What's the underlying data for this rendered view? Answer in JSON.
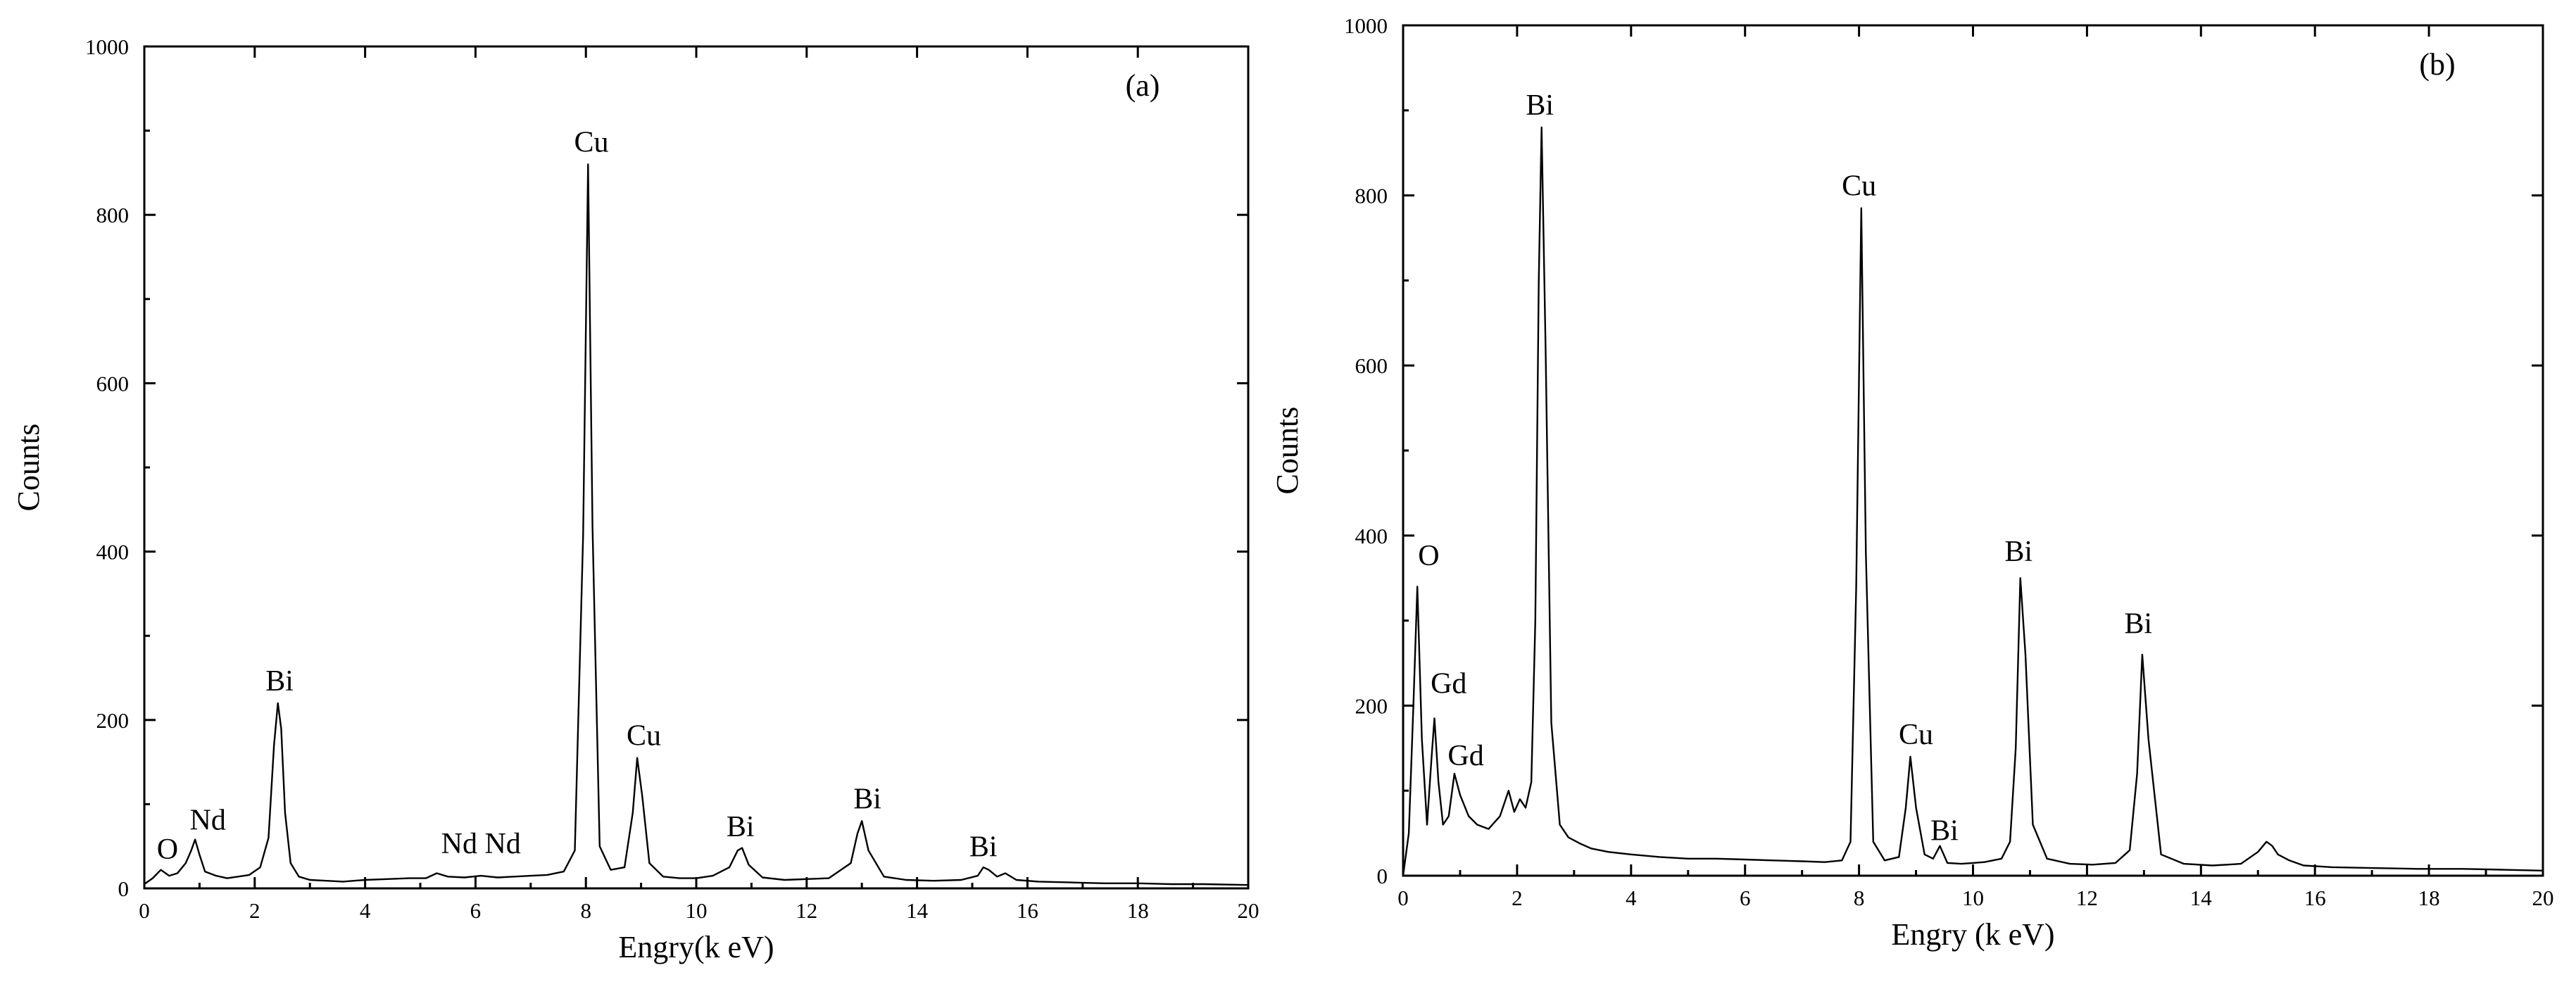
{
  "chart_data": [
    {
      "type": "line",
      "panel_label": "(a)",
      "xlabel": "Engry(k eV)",
      "ylabel": "Counts",
      "xlim": [
        0,
        20
      ],
      "ylim": [
        0,
        1000
      ],
      "x_ticks": [
        "0",
        "2",
        "4",
        "6",
        "8",
        "10",
        "12",
        "14",
        "16",
        "18",
        "20"
      ],
      "y_ticks": [
        "0",
        "200",
        "400",
        "600",
        "800",
        "1000"
      ],
      "series": [
        {
          "x": [
            0.0,
            0.15,
            0.3,
            0.45,
            0.6,
            0.75,
            0.85,
            0.92,
            1.0,
            1.1,
            1.3,
            1.5,
            1.7,
            1.9,
            2.1,
            2.25,
            2.35,
            2.42,
            2.48,
            2.55,
            2.65,
            2.8,
            3.0,
            3.3,
            3.6,
            4.0,
            4.4,
            4.8,
            5.1,
            5.3,
            5.5,
            5.8,
            6.1,
            6.4,
            6.7,
            7.0,
            7.3,
            7.6,
            7.8,
            7.95,
            8.04,
            8.12,
            8.25,
            8.45,
            8.7,
            8.85,
            8.93,
            9.02,
            9.15,
            9.4,
            9.7,
            10.0,
            10.3,
            10.6,
            10.75,
            10.83,
            10.95,
            11.2,
            11.6,
            12.0,
            12.4,
            12.8,
            12.92,
            13.0,
            13.12,
            13.4,
            13.8,
            14.3,
            14.8,
            15.1,
            15.2,
            15.3,
            15.45,
            15.6,
            15.8,
            16.2,
            16.8,
            17.4,
            18.0,
            18.6,
            19.2,
            20.0
          ],
          "y": [
            5,
            12,
            22,
            15,
            18,
            30,
            45,
            58,
            40,
            20,
            15,
            12,
            14,
            16,
            25,
            60,
            170,
            220,
            190,
            90,
            30,
            14,
            10,
            9,
            8,
            10,
            11,
            12,
            12,
            18,
            14,
            13,
            15,
            13,
            14,
            15,
            16,
            20,
            45,
            420,
            860,
            430,
            50,
            22,
            25,
            90,
            155,
            110,
            30,
            14,
            12,
            12,
            15,
            25,
            45,
            48,
            28,
            13,
            10,
            11,
            12,
            30,
            65,
            80,
            45,
            14,
            10,
            9,
            10,
            15,
            25,
            22,
            14,
            18,
            10,
            8,
            7,
            6,
            6,
            5,
            5,
            4
          ]
        }
      ],
      "annotations": [
        {
          "text": "O",
          "x": 0.42,
          "y": 35
        },
        {
          "text": "Nd",
          "x": 1.15,
          "y": 70
        },
        {
          "text": "Bi",
          "x": 2.45,
          "y": 235
        },
        {
          "text": "Nd Nd",
          "x": 6.1,
          "y": 42
        },
        {
          "text": "Cu",
          "x": 8.1,
          "y": 875
        },
        {
          "text": "Cu",
          "x": 9.05,
          "y": 170
        },
        {
          "text": "Bi",
          "x": 10.8,
          "y": 62
        },
        {
          "text": "Bi",
          "x": 13.1,
          "y": 95
        },
        {
          "text": "Bi",
          "x": 15.2,
          "y": 38
        }
      ]
    },
    {
      "type": "line",
      "panel_label": "(b)",
      "xlabel": "Engry (k eV)",
      "ylabel": "Counts",
      "xlim": [
        0,
        20
      ],
      "ylim": [
        0,
        1000
      ],
      "x_ticks": [
        "0",
        "2",
        "4",
        "6",
        "8",
        "10",
        "12",
        "14",
        "16",
        "18",
        "20"
      ],
      "y_ticks": [
        "0",
        "200",
        "400",
        "600",
        "800",
        "1000"
      ],
      "series": [
        {
          "x": [
            0.0,
            0.1,
            0.18,
            0.25,
            0.33,
            0.42,
            0.5,
            0.55,
            0.62,
            0.7,
            0.8,
            0.9,
            1.0,
            1.15,
            1.3,
            1.5,
            1.7,
            1.85,
            1.95,
            2.05,
            2.15,
            2.25,
            2.32,
            2.38,
            2.43,
            2.5,
            2.6,
            2.75,
            2.9,
            3.1,
            3.3,
            3.6,
            4.0,
            4.5,
            5.0,
            5.5,
            6.0,
            6.5,
            7.0,
            7.4,
            7.7,
            7.85,
            7.95,
            8.04,
            8.12,
            8.25,
            8.45,
            8.7,
            8.82,
            8.9,
            9.0,
            9.15,
            9.3,
            9.42,
            9.55,
            9.8,
            10.2,
            10.5,
            10.65,
            10.75,
            10.83,
            10.92,
            11.05,
            11.3,
            11.7,
            12.1,
            12.5,
            12.75,
            12.88,
            12.97,
            13.08,
            13.3,
            13.7,
            14.2,
            14.7,
            15.0,
            15.15,
            15.25,
            15.35,
            15.55,
            15.8,
            16.3,
            17.0,
            17.8,
            18.6,
            19.3,
            20.0
          ],
          "y": [
            0,
            50,
            200,
            340,
            160,
            60,
            140,
            185,
            110,
            60,
            70,
            120,
            95,
            70,
            60,
            55,
            70,
            100,
            75,
            90,
            80,
            110,
            300,
            700,
            880,
            620,
            180,
            60,
            45,
            38,
            32,
            28,
            25,
            22,
            20,
            20,
            19,
            18,
            17,
            16,
            18,
            40,
            340,
            785,
            380,
            40,
            18,
            22,
            80,
            140,
            80,
            25,
            20,
            35,
            15,
            14,
            16,
            20,
            40,
            150,
            350,
            260,
            60,
            20,
            14,
            13,
            15,
            30,
            120,
            260,
            160,
            25,
            14,
            12,
            14,
            28,
            40,
            35,
            25,
            18,
            12,
            10,
            9,
            8,
            8,
            7,
            6
          ]
        }
      ],
      "annotations": [
        {
          "text": "O",
          "x": 0.45,
          "y": 365
        },
        {
          "text": "Gd",
          "x": 0.8,
          "y": 215
        },
        {
          "text": "Gd",
          "x": 1.1,
          "y": 130
        },
        {
          "text": "Bi",
          "x": 2.4,
          "y": 895
        },
        {
          "text": "Cu",
          "x": 8.0,
          "y": 800
        },
        {
          "text": "Cu",
          "x": 9.0,
          "y": 155
        },
        {
          "text": "Bi",
          "x": 9.5,
          "y": 42
        },
        {
          "text": "Bi",
          "x": 10.8,
          "y": 370
        },
        {
          "text": "Bi",
          "x": 12.9,
          "y": 285
        }
      ]
    }
  ]
}
